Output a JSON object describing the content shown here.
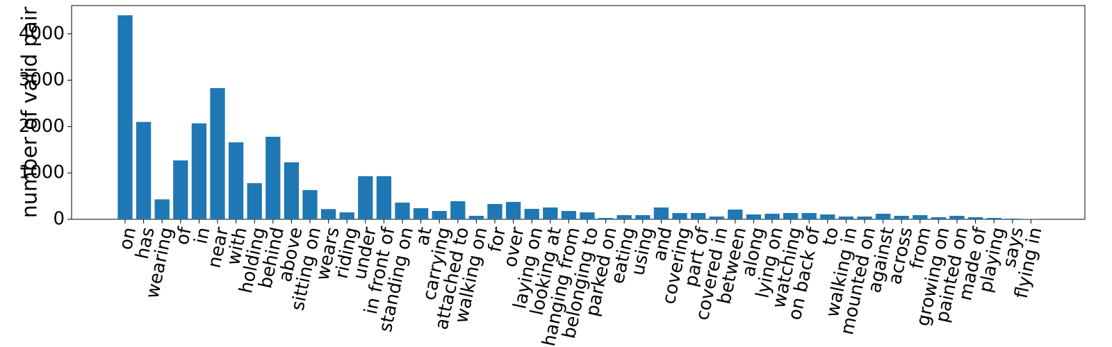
{
  "chart_data": {
    "type": "bar",
    "ylabel": "number of valid pair",
    "categories": [
      "on",
      "has",
      "wearing",
      "of",
      "in",
      "near",
      "with",
      "holding",
      "behind",
      "above",
      "sitting on",
      "wears",
      "riding",
      "under",
      "in front of",
      "standing on",
      "at",
      "carrying",
      "attached to",
      "walking on",
      "for",
      "over",
      "laying on",
      "looking at",
      "hanging from",
      "belonging to",
      "parked on",
      "eating",
      "using",
      "and",
      "covering",
      "part of",
      "covered in",
      "between",
      "along",
      "lying on",
      "watching",
      "on back of",
      "to",
      "walking in",
      "mounted on",
      "against",
      "across",
      "from",
      "growing on",
      "painted on",
      "made of",
      "playing",
      "says",
      "flying in"
    ],
    "values": [
      4400,
      2100,
      430,
      1270,
      2070,
      2830,
      1660,
      780,
      1780,
      1230,
      630,
      220,
      150,
      930,
      930,
      360,
      240,
      180,
      390,
      75,
      330,
      375,
      225,
      255,
      180,
      150,
      30,
      90,
      90,
      255,
      135,
      135,
      60,
      210,
      105,
      120,
      135,
      135,
      105,
      60,
      60,
      120,
      75,
      90,
      45,
      75,
      45,
      30,
      15,
      5
    ],
    "color": "#1f77b4",
    "ylim": [
      0,
      4610
    ],
    "yticks": [
      0,
      1000,
      2000,
      3000,
      4000
    ]
  }
}
